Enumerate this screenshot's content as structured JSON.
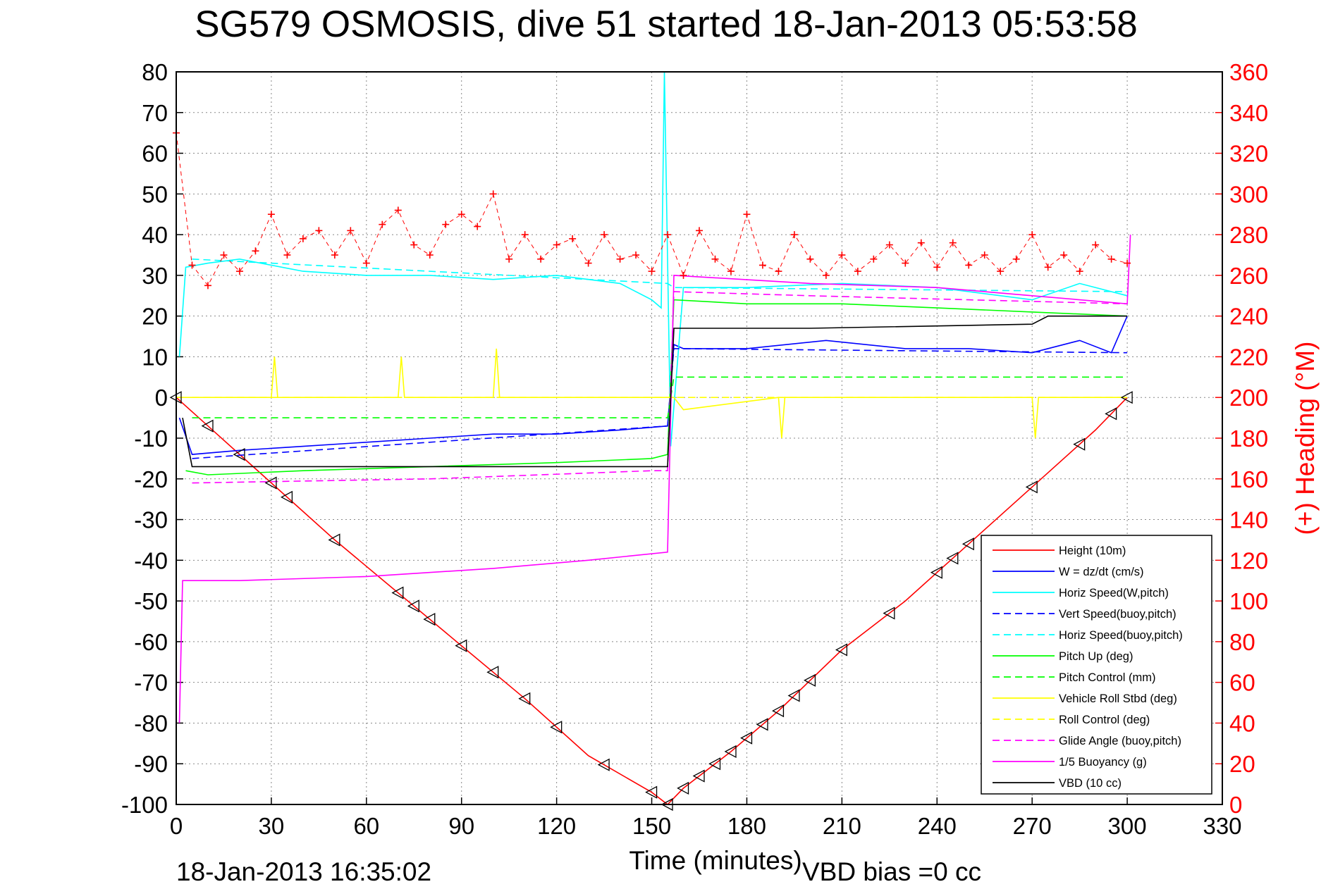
{
  "chart_data": {
    "type": "line",
    "title": "SG579 OSMOSIS, dive 51 started 18-Jan-2013 05:53:58",
    "xlabel": "Time (minutes)",
    "ylabel_right": "(+) Heading (°M)",
    "xlim": [
      0,
      330
    ],
    "ylim": [
      -100,
      80
    ],
    "ylim_right": [
      0,
      360
    ],
    "x_ticks": [
      "0",
      "30",
      "60",
      "90",
      "120",
      "150",
      "180",
      "210",
      "240",
      "270",
      "300",
      "330"
    ],
    "y_ticks": [
      "80",
      "70",
      "60",
      "50",
      "40",
      "30",
      "20",
      "10",
      "0",
      "-10",
      "-20",
      "-30",
      "-40",
      "-50",
      "-60",
      "-70",
      "-80",
      "-90",
      "-100"
    ],
    "y_ticks_right": [
      "360",
      "340",
      "320",
      "300",
      "280",
      "260",
      "240",
      "220",
      "200",
      "180",
      "160",
      "140",
      "120",
      "100",
      "80",
      "60",
      "40",
      "20",
      "0"
    ],
    "grid": true,
    "legend_position": "bottom-right",
    "footer_left": "18-Jan-2013 16:35:02",
    "footer_right": "VBD bias =0 cc",
    "series": [
      {
        "name": "Height (10m)",
        "color": "#ff0000",
        "style": "solid",
        "x": [
          0,
          10,
          20,
          30,
          50,
          70,
          90,
          110,
          130,
          150,
          155,
          160,
          175,
          190,
          210,
          230,
          250,
          270,
          290,
          300
        ],
        "y": [
          0,
          -7,
          -14,
          -21,
          -35,
          -48,
          -61,
          -74,
          -88,
          -97,
          -100,
          -96,
          -87,
          -77,
          -62,
          -50,
          -36,
          -22,
          -8,
          0
        ]
      },
      {
        "name": "W = dz/dt (cm/s)",
        "color": "#0000ff",
        "style": "solid",
        "x": [
          1,
          5,
          20,
          40,
          60,
          80,
          100,
          120,
          140,
          155,
          157,
          160,
          180,
          205,
          230,
          250,
          270,
          285,
          295,
          300
        ],
        "y": [
          -5,
          -14,
          -13,
          -12,
          -11,
          -10,
          -9,
          -9,
          -8,
          -7,
          13,
          12,
          12,
          14,
          12,
          12,
          11,
          14,
          11,
          20
        ]
      },
      {
        "name": "Horiz Speed(W,pitch)",
        "color": "#00ffff",
        "style": "solid",
        "x": [
          1,
          3,
          10,
          20,
          40,
          60,
          80,
          100,
          120,
          140,
          150,
          153,
          154,
          156,
          160,
          180,
          210,
          240,
          270,
          285,
          300
        ],
        "y": [
          10,
          32,
          33,
          34,
          31,
          30,
          30,
          29,
          30,
          28,
          24,
          22,
          80,
          -12,
          27,
          27,
          28,
          27,
          24,
          28,
          25
        ]
      },
      {
        "name": "Vert Speed(buoy,pitch)",
        "color": "#0000ff",
        "style": "dashed",
        "x": [
          5,
          155,
          157,
          300
        ],
        "y": [
          -15,
          -7,
          12,
          11
        ]
      },
      {
        "name": "Horiz Speed(buoy,pitch)",
        "color": "#00ffff",
        "style": "dashed",
        "x": [
          5,
          155,
          157,
          300
        ],
        "y": [
          34,
          28,
          27,
          26
        ]
      },
      {
        "name": "Pitch Up (deg)",
        "color": "#00ff00",
        "style": "solid",
        "x": [
          3,
          10,
          40,
          80,
          120,
          150,
          155,
          157,
          180,
          210,
          240,
          270,
          300
        ],
        "y": [
          -18,
          -19,
          -18,
          -17,
          -16,
          -15,
          -14,
          24,
          23,
          23,
          22,
          21,
          20
        ]
      },
      {
        "name": "Pitch Control (mm)",
        "color": "#00ff00",
        "style": "dashed",
        "x": [
          5,
          155,
          157,
          300
        ],
        "y": [
          -5,
          -5,
          5,
          5
        ]
      },
      {
        "name": "Vehicle Roll Stbd (deg)",
        "color": "#ffff00",
        "style": "solid",
        "x": [
          0,
          5,
          30,
          31,
          32,
          60,
          70,
          71,
          72,
          100,
          101,
          102,
          155,
          157,
          160,
          190,
          191,
          192,
          270,
          271,
          272,
          300
        ],
        "y": [
          0,
          0,
          0,
          10,
          0,
          0,
          0,
          10,
          0,
          0,
          12,
          0,
          0,
          0,
          -3,
          0,
          -10,
          0,
          0,
          -10,
          0,
          0
        ]
      },
      {
        "name": "Roll Control (deg)",
        "color": "#ffff00",
        "style": "dashed",
        "x": [
          5,
          300
        ],
        "y": [
          0,
          0
        ]
      },
      {
        "name": "Glide Angle (buoy,pitch)",
        "color": "#ff00ff",
        "style": "dashed",
        "x": [
          5,
          80,
          150,
          155,
          157,
          200,
          250,
          300
        ],
        "y": [
          -21,
          -20,
          -18,
          -18,
          26,
          25,
          24,
          23
        ]
      },
      {
        "name": "1/5 Buoyancy (g)",
        "color": "#ff00ff",
        "style": "solid",
        "x": [
          1,
          2,
          20,
          60,
          100,
          130,
          155,
          157,
          200,
          240,
          270,
          300,
          301
        ],
        "y": [
          -80,
          -45,
          -45,
          -44,
          -42,
          -40,
          -38,
          30,
          28,
          27,
          25,
          23,
          40
        ]
      },
      {
        "name": "VBD (10 cc)",
        "color": "#000000",
        "style": "solid",
        "x": [
          2,
          5,
          155,
          157,
          160,
          200,
          270,
          275,
          300
        ],
        "y": [
          -5,
          -17,
          -17,
          17,
          17,
          17,
          18,
          20,
          20
        ]
      }
    ],
    "heading_series": {
      "name": "(+) Heading (°M)",
      "color": "#ff0000",
      "style": "markers",
      "x": [
        0,
        5,
        10,
        15,
        20,
        25,
        30,
        35,
        40,
        45,
        50,
        55,
        60,
        65,
        70,
        75,
        80,
        85,
        90,
        95,
        100,
        105,
        110,
        115,
        120,
        125,
        130,
        135,
        140,
        145,
        150,
        155,
        160,
        165,
        170,
        175,
        180,
        185,
        190,
        195,
        200,
        205,
        210,
        215,
        220,
        225,
        230,
        235,
        240,
        245,
        250,
        255,
        260,
        265,
        270,
        275,
        280,
        285,
        290,
        295,
        300
      ],
      "y": [
        330,
        265,
        255,
        270,
        262,
        272,
        290,
        270,
        278,
        282,
        270,
        282,
        266,
        285,
        292,
        275,
        270,
        285,
        290,
        284,
        300,
        268,
        280,
        268,
        275,
        278,
        266,
        280,
        268,
        270,
        262,
        280,
        260,
        282,
        268,
        262,
        290,
        265,
        262,
        280,
        268,
        260,
        270,
        262,
        268,
        275,
        266,
        276,
        264,
        276,
        265,
        270,
        262,
        268,
        280,
        264,
        270,
        262,
        275,
        268,
        266
      ]
    }
  }
}
